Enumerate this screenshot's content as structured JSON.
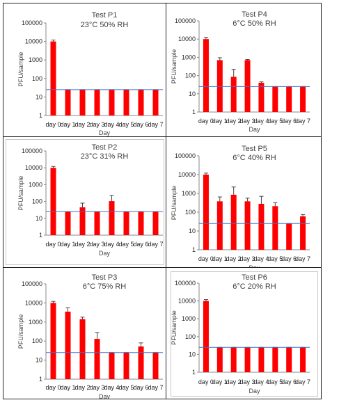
{
  "chart_data": [
    {
      "type": "bar",
      "log_scale": true,
      "ylim": [
        1,
        100000
      ],
      "title": "Test P1",
      "subtitle": "23°C 50% RH",
      "xlabel": "Day",
      "ylabel": "PFU/sample",
      "yticks": [
        "1",
        "10",
        "100",
        "1000",
        "10000",
        "100000"
      ],
      "categories": [
        "day 0",
        "day 1",
        "day 2",
        "day 3",
        "day 4",
        "day 5",
        "day 6",
        "day 7"
      ],
      "values": [
        10000,
        25,
        25,
        25,
        25,
        25,
        25,
        25
      ],
      "error_up": [
        12000,
        25,
        25,
        25,
        25,
        25,
        25,
        25
      ],
      "threshold": 25,
      "bar_color": "#ff0000",
      "threshold_color": "#4472c4"
    },
    {
      "type": "bar",
      "log_scale": true,
      "ylim": [
        1,
        100000
      ],
      "title": "Test P4",
      "subtitle": "6°C 50% RH",
      "xlabel": "Day",
      "ylabel": "PFU/sample",
      "yticks": [
        "1",
        "10",
        "100",
        "1000",
        "10000",
        "100000"
      ],
      "categories": [
        "day 0",
        "day 1",
        "day 2",
        "day 3",
        "day 4",
        "day 5",
        "day 6",
        "day 7"
      ],
      "values": [
        10000,
        700,
        85,
        700,
        40,
        25,
        25,
        25
      ],
      "error_up": [
        12500,
        950,
        220,
        760,
        45,
        25,
        25,
        25
      ],
      "threshold": 25,
      "bar_color": "#ff0000",
      "threshold_color": "#4472c4"
    },
    {
      "type": "bar",
      "log_scale": true,
      "ylim": [
        1,
        100000
      ],
      "title": "Test P2",
      "subtitle": "23°C 31% RH",
      "xlabel": "Day",
      "ylabel": "PFU/sample",
      "yticks": [
        "1",
        "10",
        "100",
        "1000",
        "10000",
        "100000"
      ],
      "categories": [
        "day 0",
        "day 1",
        "day 2",
        "day 3",
        "day 4",
        "day 5",
        "day 6",
        "day 7"
      ],
      "values": [
        10000,
        25,
        45,
        25,
        105,
        25,
        25,
        25
      ],
      "error_up": [
        12000,
        25,
        80,
        25,
        230,
        25,
        25,
        25
      ],
      "threshold": 25,
      "bar_color": "#ff0000",
      "threshold_color": "#4472c4"
    },
    {
      "type": "bar",
      "log_scale": true,
      "ylim": [
        1,
        100000
      ],
      "title": "Test P5",
      "subtitle": "6°C 40% RH",
      "xlabel": "Day",
      "ylabel": "PFU/sample",
      "yticks": [
        "1",
        "10",
        "100",
        "1000",
        "10000",
        "100000"
      ],
      "categories": [
        "day 0",
        "day 1",
        "day 2",
        "day 3",
        "day 4",
        "day 5",
        "day 6",
        "day 7"
      ],
      "values": [
        10000,
        380,
        850,
        380,
        280,
        210,
        25,
        60
      ],
      "error_up": [
        12000,
        650,
        2200,
        560,
        700,
        320,
        25,
        75
      ],
      "threshold": 25,
      "bar_color": "#ff0000",
      "threshold_color": "#4472c4"
    },
    {
      "type": "bar",
      "log_scale": true,
      "ylim": [
        1,
        100000
      ],
      "title": "Test P3",
      "subtitle": "6°C 75% RH",
      "xlabel": "Day",
      "ylabel": "PFU/sample",
      "yticks": [
        "1",
        "10",
        "100",
        "1000",
        "10000",
        "100000"
      ],
      "categories": [
        "day 0",
        "day 1",
        "day 2",
        "day 3",
        "day 4",
        "day 5",
        "day 6",
        "day 7"
      ],
      "values": [
        10000,
        3500,
        1400,
        130,
        25,
        25,
        52,
        25
      ],
      "error_up": [
        12000,
        5500,
        1800,
        280,
        25,
        25,
        80,
        25
      ],
      "threshold": 25,
      "bar_color": "#ff0000",
      "threshold_color": "#4472c4"
    },
    {
      "type": "bar",
      "log_scale": true,
      "ylim": [
        1,
        100000
      ],
      "title": "Test P6",
      "subtitle": "6°C 20% RH",
      "xlabel": "Day",
      "ylabel": "PFU/sample",
      "yticks": [
        "1",
        "10",
        "100",
        "1000",
        "10000",
        "100000"
      ],
      "categories": [
        "day 0",
        "day 1",
        "day 2",
        "day 3",
        "day 4",
        "day 5",
        "day 6",
        "day 7"
      ],
      "values": [
        10000,
        25,
        25,
        25,
        25,
        25,
        25,
        25
      ],
      "error_up": [
        12000,
        25,
        25,
        25,
        25,
        25,
        25,
        25
      ],
      "threshold": 25,
      "bar_color": "#ff0000",
      "threshold_color": "#4472c4"
    }
  ]
}
